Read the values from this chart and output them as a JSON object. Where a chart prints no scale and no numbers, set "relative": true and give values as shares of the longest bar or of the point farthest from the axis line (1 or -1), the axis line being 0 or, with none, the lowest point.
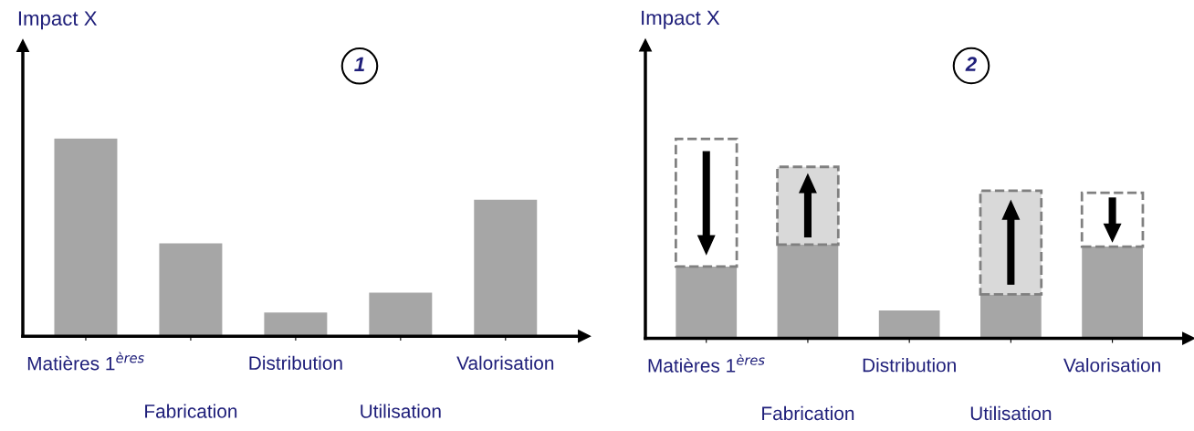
{
  "chart_data": [
    {
      "type": "bar",
      "title": "1",
      "ylabel": "Impact X",
      "relative": true,
      "categories": [
        "Matières 1$^{ères}$",
        "Fabrication",
        "Distribution",
        "Utilisation",
        "Valorisation"
      ],
      "series": [
        {
          "color": "#a6a6a6",
          "values": [
            1,
            0.47,
            0.12,
            0.22,
            0.69
          ]
        }
      ]
    },
    {
      "type": "bar",
      "title": "2",
      "ylabel": "Impact X",
      "relative": true,
      "stacked": true,
      "categories": [
        "Matières 1$^{ères}$",
        "Fabrication",
        "Distribution",
        "Utilisation",
        "Valorisation"
      ],
      "series": [
        {
          "color": "#a6a6a6",
          "values": [
            0.36,
            0.47,
            0.14,
            0.22,
            0.46
          ]
        },
        {
          "colors": [
            "#ffffff",
            "#d9d9d9",
            null,
            "#d9d9d9",
            "#ffffff"
          ],
          "line_style": "dashed",
          "values": [
            0.64,
            0.39,
            null,
            0.52,
            0.27
          ]
        }
      ]
    }
  ]
}
